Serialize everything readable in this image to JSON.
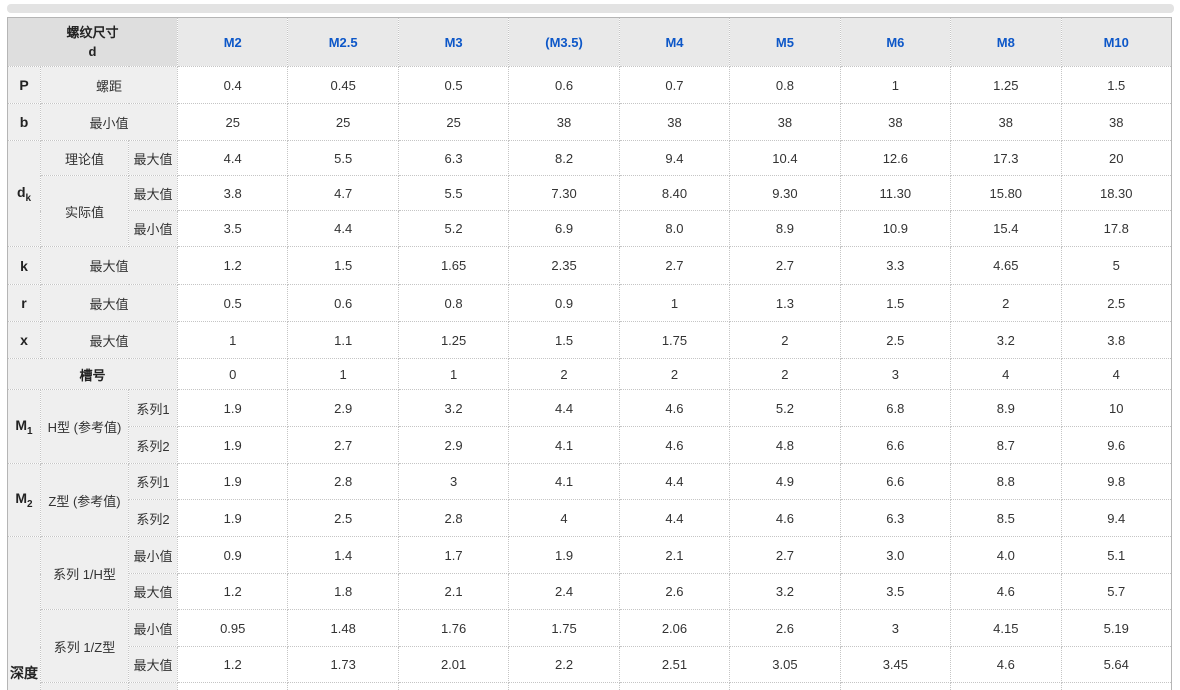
{
  "colors": {
    "accent": "#0d57c8",
    "header_bg": "#e9e9e9",
    "corner_bg": "#dedede",
    "label_bg": "#efefef",
    "border": "#c5c5c5"
  },
  "header": {
    "corner_line1": "螺纹尺寸",
    "corner_line2": "d",
    "columns": [
      "M2",
      "M2.5",
      "M3",
      "(M3.5)",
      "M4",
      "M5",
      "M6",
      "M8",
      "M10"
    ]
  },
  "rows": {
    "p": {
      "key": "P",
      "label": "螺距",
      "values": [
        "0.4",
        "0.45",
        "0.5",
        "0.6",
        "0.7",
        "0.8",
        "1",
        "1.25",
        "1.5"
      ]
    },
    "b": {
      "key": "b",
      "label": "最小值",
      "values": [
        "25",
        "25",
        "25",
        "38",
        "38",
        "38",
        "38",
        "38",
        "38"
      ]
    },
    "dk": {
      "key_main": "d",
      "key_sub": "k",
      "theory_label": "理论值",
      "theory_max_label": "最大值",
      "theory_max": [
        "4.4",
        "5.5",
        "6.3",
        "8.2",
        "9.4",
        "10.4",
        "12.6",
        "17.3",
        "20"
      ],
      "actual_label": "实际值",
      "actual_max_label": "最大值",
      "actual_max": [
        "3.8",
        "4.7",
        "5.5",
        "7.30",
        "8.40",
        "9.30",
        "11.30",
        "15.80",
        "18.30"
      ],
      "actual_min_label": "最小值",
      "actual_min": [
        "3.5",
        "4.4",
        "5.2",
        "6.9",
        "8.0",
        "8.9",
        "10.9",
        "15.4",
        "17.8"
      ]
    },
    "k": {
      "key": "k",
      "label": "最大值",
      "values": [
        "1.2",
        "1.5",
        "1.65",
        "2.35",
        "2.7",
        "2.7",
        "3.3",
        "4.65",
        "5"
      ]
    },
    "r": {
      "key": "r",
      "label": "最大值",
      "values": [
        "0.5",
        "0.6",
        "0.8",
        "0.9",
        "1",
        "1.3",
        "1.5",
        "2",
        "2.5"
      ]
    },
    "x": {
      "key": "x",
      "label": "最大值",
      "values": [
        "1",
        "1.1",
        "1.25",
        "1.5",
        "1.75",
        "2",
        "2.5",
        "3.2",
        "3.8"
      ]
    },
    "slot": {
      "label": "槽号",
      "values": [
        "0",
        "1",
        "1",
        "2",
        "2",
        "2",
        "3",
        "4",
        "4"
      ]
    },
    "m1": {
      "key_main": "M",
      "key_sub": "1",
      "type_label": "H型 (参考值)",
      "series1_label": "系列1",
      "series2_label": "系列2",
      "series1": [
        "1.9",
        "2.9",
        "3.2",
        "4.4",
        "4.6",
        "5.2",
        "6.8",
        "8.9",
        "10"
      ],
      "series2": [
        "1.9",
        "2.7",
        "2.9",
        "4.1",
        "4.6",
        "4.8",
        "6.6",
        "8.7",
        "9.6"
      ]
    },
    "m2": {
      "key_main": "M",
      "key_sub": "2",
      "type_label": "Z型 (参考值)",
      "series1_label": "系列1",
      "series2_label": "系列2",
      "series1": [
        "1.9",
        "2.8",
        "3",
        "4.1",
        "4.4",
        "4.9",
        "6.6",
        "8.8",
        "9.8"
      ],
      "series2": [
        "1.9",
        "2.5",
        "2.8",
        "4",
        "4.4",
        "4.6",
        "6.3",
        "8.5",
        "9.4"
      ]
    },
    "depth": {
      "key": "深度",
      "h_label": "系列 1/H型",
      "h_min_label": "最小值",
      "h_max_label": "最大值",
      "h_min": [
        "0.9",
        "1.4",
        "1.7",
        "1.9",
        "2.1",
        "2.7",
        "3.0",
        "4.0",
        "5.1"
      ],
      "h_max": [
        "1.2",
        "1.8",
        "2.1",
        "2.4",
        "2.6",
        "3.2",
        "3.5",
        "4.6",
        "5.7"
      ],
      "z_label": "系列 1/Z型",
      "z_min_label": "最小值",
      "z_max_label": "最大值",
      "z_min": [
        "0.95",
        "1.48",
        "1.76",
        "1.75",
        "2.06",
        "2.6",
        "3",
        "4.15",
        "5.19"
      ],
      "z_max": [
        "1.2",
        "1.73",
        "2.01",
        "2.2",
        "2.51",
        "3.05",
        "3.45",
        "4.6",
        "5.64"
      ]
    }
  }
}
